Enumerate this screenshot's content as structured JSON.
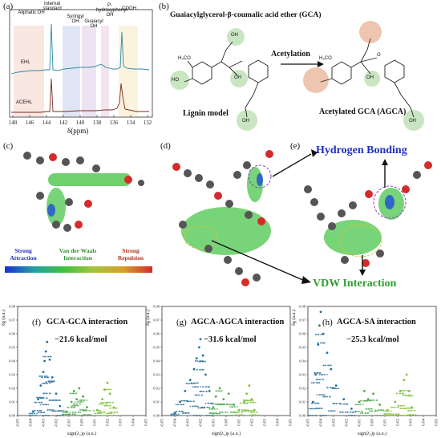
{
  "panels": {
    "a": {
      "label": "(a)",
      "peaks": [
        "Aliphatic OH",
        "Internal standard",
        "Syringyl OH",
        "Guaiacyl OH",
        "P-hydroxyphenyl OH",
        "COOH"
      ],
      "traces": [
        "EHL",
        "ACEHL"
      ],
      "x_ticks": [
        "148",
        "146",
        "144",
        "142",
        "140",
        "138",
        "136",
        "134",
        "132"
      ],
      "x_label": "δ(ppm)"
    },
    "b": {
      "label": "(b)",
      "title": "Guaiacylglycerol-β-coumalic acid ether (GCA)",
      "arrow_label": "Acetylation",
      "left_caption": "Lignin model",
      "right_caption": "Acetylated GCA (AGCA)",
      "atoms": {
        "oh": "OH",
        "ho": "HO",
        "ome": "H₃CO",
        "o": "O"
      }
    },
    "c": {
      "label": "(c)",
      "scale": {
        "left": "Strong Attraction",
        "middle": "Van der Waals Interaction",
        "right": "Strong Repulsion"
      }
    },
    "d": {
      "label": "(d)"
    },
    "e": {
      "label": "(e)",
      "hbond": "Hydrogen Bonding",
      "vdw": "VDW Interaction"
    },
    "plots": [
      {
        "label": "(f)",
        "title": "GCA-GCA interaction",
        "energy": "−21.6 kcal/mol"
      },
      {
        "label": "(g)",
        "title": "AGCA-AGCA interaction",
        "energy": "−31.6 kcal/mol"
      },
      {
        "label": "(h)",
        "title": "AGCA-SA interaction",
        "energy": "−25.3 kcal/mol"
      }
    ],
    "plot_axes": {
      "xlabel": "sign(λ₂)ρ (a.u.)",
      "ylabel": "δg (a.u.)",
      "x_ticks": [
        "-0.05",
        "-0.04",
        "-0.03",
        "-0.02",
        "-0.01",
        "0.00",
        "0.01",
        "0.02",
        "0.03",
        "0.04",
        "0.05"
      ],
      "y_ticks": [
        "0.00",
        "0.01",
        "0.02",
        "0.03",
        "0.04",
        "0.05",
        "0.06",
        "0.07",
        "0.08"
      ]
    }
  },
  "colors": {
    "hbond": "#1f2fbf",
    "vdw": "#3aa63a",
    "green_highlight": "#9fcf8f",
    "orange_highlight": "#e3a07a",
    "ehl_trace": "#2a8aa0",
    "acehl_trace": "#7a2a1f"
  },
  "chart_data": [
    {
      "type": "scatter",
      "title": "GCA-GCA interaction",
      "xlabel": "sign(λ₂)ρ (a.u.)",
      "ylabel": "δg (a.u.)",
      "xlim": [
        -0.05,
        0.05
      ],
      "ylim": [
        0,
        0.08
      ],
      "series": [
        {
          "values": [
            [
              -0.038,
              0.003
            ],
            [
              -0.034,
              0.012
            ],
            [
              -0.032,
              0.022
            ],
            [
              -0.03,
              0.032
            ],
            [
              -0.029,
              0.04
            ],
            [
              -0.028,
              0.047
            ],
            [
              -0.027,
              0.054
            ],
            [
              -0.025,
              0.041
            ],
            [
              -0.023,
              0.028
            ],
            [
              -0.02,
              0.016
            ],
            [
              -0.017,
              0.007
            ],
            [
              -0.012,
              0.003
            ],
            [
              -0.008,
              0.01
            ],
            [
              -0.006,
              0.018
            ],
            [
              -0.004,
              0.012
            ],
            [
              -0.002,
              0.02
            ],
            [
              0.001,
              0.014
            ],
            [
              0.004,
              0.006
            ],
            [
              0.012,
              0.004
            ],
            [
              0.016,
              0.012
            ],
            [
              0.018,
              0.019
            ],
            [
              0.02,
              0.024
            ],
            [
              0.022,
              0.016
            ],
            [
              0.025,
              0.006
            ]
          ]
        }
      ]
    },
    {
      "type": "scatter",
      "title": "AGCA-AGCA interaction",
      "xlabel": "sign(λ₂)ρ (a.u.)",
      "ylabel": "δg (a.u.)",
      "xlim": [
        -0.05,
        0.05
      ],
      "ylim": [
        0,
        0.08
      ],
      "series": [
        {
          "values": [
            [
              -0.04,
              0.002
            ],
            [
              -0.036,
              0.01
            ],
            [
              -0.032,
              0.018
            ],
            [
              -0.028,
              0.026
            ],
            [
              -0.025,
              0.034
            ],
            [
              -0.023,
              0.042
            ],
            [
              -0.021,
              0.05
            ],
            [
              -0.02,
              0.056
            ],
            [
              -0.018,
              0.044
            ],
            [
              -0.016,
              0.03
            ],
            [
              -0.013,
              0.018
            ],
            [
              -0.01,
              0.006
            ],
            [
              -0.008,
              0.014
            ],
            [
              -0.005,
              0.02
            ],
            [
              -0.002,
              0.012
            ],
            [
              0.002,
              0.016
            ],
            [
              0.006,
              0.008
            ],
            [
              0.01,
              0.004
            ],
            [
              0.014,
              0.01
            ],
            [
              0.016,
              0.016
            ],
            [
              0.018,
              0.022
            ],
            [
              0.02,
              0.012
            ],
            [
              0.022,
              0.004
            ]
          ]
        }
      ]
    },
    {
      "type": "scatter",
      "title": "AGCA-SA interaction",
      "xlabel": "sign(λ₂)ρ (a.u.)",
      "ylabel": "δg (a.u.)",
      "xlim": [
        -0.05,
        0.05
      ],
      "ylim": [
        0,
        0.08
      ],
      "series": [
        {
          "values": [
            [
              -0.046,
              0.01
            ],
            [
              -0.044,
              0.03
            ],
            [
              -0.042,
              0.052
            ],
            [
              -0.041,
              0.066
            ],
            [
              -0.04,
              0.076
            ],
            [
              -0.038,
              0.06
            ],
            [
              -0.035,
              0.046
            ],
            [
              -0.032,
              0.034
            ],
            [
              -0.028,
              0.022
            ],
            [
              -0.022,
              0.012
            ],
            [
              -0.016,
              0.005
            ],
            [
              -0.01,
              0.01
            ],
            [
              -0.006,
              0.018
            ],
            [
              -0.003,
              0.012
            ],
            [
              0.001,
              0.016
            ],
            [
              0.006,
              0.008
            ],
            [
              0.012,
              0.004
            ],
            [
              0.018,
              0.01
            ],
            [
              0.022,
              0.018
            ],
            [
              0.025,
              0.026
            ],
            [
              0.027,
              0.03
            ],
            [
              0.029,
              0.018
            ],
            [
              0.031,
              0.006
            ]
          ]
        }
      ]
    }
  ]
}
